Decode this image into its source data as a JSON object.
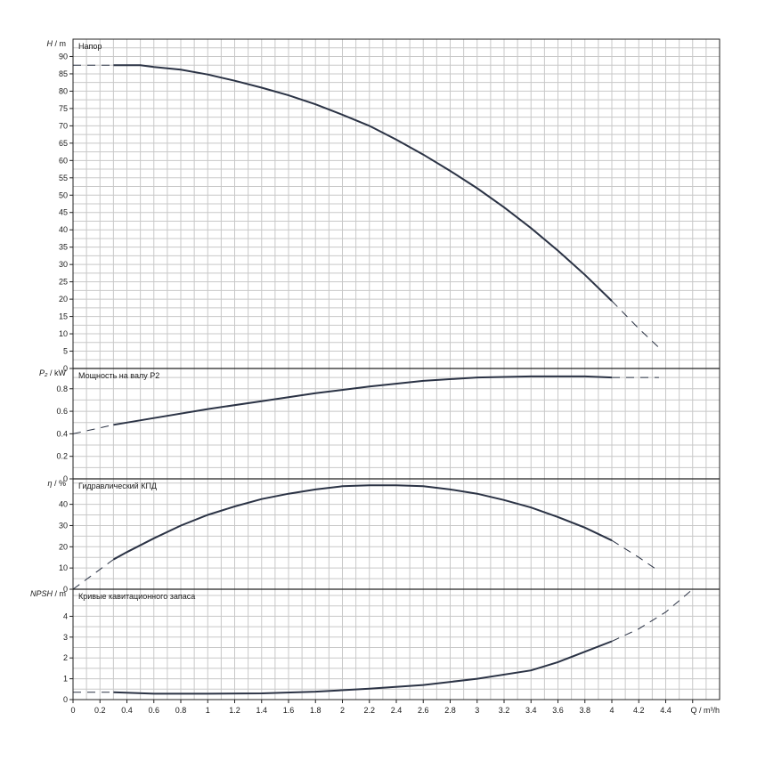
{
  "chart_data": [
    {
      "type": "line",
      "title": "Напор",
      "ylabel_italic": "H",
      "ylabel_unit": "m",
      "ylim": [
        0,
        95
      ],
      "yticks": [
        0,
        5,
        10,
        15,
        20,
        25,
        30,
        35,
        40,
        45,
        50,
        55,
        60,
        65,
        70,
        75,
        80,
        85,
        90
      ],
      "grid": true,
      "series": [
        {
          "style": "solid",
          "x": [
            0.3,
            0.4,
            0.5,
            0.6,
            0.8,
            1.0,
            1.2,
            1.4,
            1.6,
            1.8,
            2.0,
            2.2,
            2.4,
            2.6,
            2.8,
            3.0,
            3.2,
            3.4,
            3.6,
            3.8,
            4.0
          ],
          "y": [
            87.5,
            87.5,
            87.5,
            87,
            86.2,
            84.8,
            83,
            81,
            78.8,
            76.2,
            73.2,
            70,
            66,
            61.7,
            57,
            52,
            46.5,
            40.5,
            34,
            27,
            19.5
          ]
        },
        {
          "style": "dashed",
          "x": [
            0,
            0.3
          ],
          "y": [
            87.5,
            87.5
          ]
        },
        {
          "style": "dashed",
          "x": [
            4.0,
            4.1,
            4.2,
            4.35
          ],
          "y": [
            19.5,
            15.5,
            11.5,
            6
          ]
        }
      ]
    },
    {
      "type": "line",
      "title": "Мощность на валу P2",
      "ylabel_italic": "P₂",
      "ylabel_unit": "kW",
      "ylim": [
        0,
        0.98
      ],
      "yticks": [
        0,
        0.2,
        0.4,
        0.6,
        0.8
      ],
      "ytick_labels": [
        "0",
        "0.2",
        "0.4",
        "0.6",
        "0.8"
      ],
      "grid": true,
      "series": [
        {
          "style": "solid",
          "x": [
            0.3,
            0.6,
            1.0,
            1.4,
            1.8,
            2.2,
            2.6,
            3.0,
            3.4,
            3.8,
            4.0
          ],
          "y": [
            0.48,
            0.54,
            0.62,
            0.69,
            0.76,
            0.82,
            0.87,
            0.9,
            0.91,
            0.91,
            0.9
          ]
        },
        {
          "style": "dashed",
          "x": [
            0,
            0.3
          ],
          "y": [
            0.4,
            0.48
          ]
        },
        {
          "style": "dashed",
          "x": [
            4.0,
            4.35
          ],
          "y": [
            0.9,
            0.9
          ]
        }
      ]
    },
    {
      "type": "line",
      "title": "Гидравлический КПД",
      "ylabel_italic": "η",
      "ylabel_unit": "%",
      "ylim": [
        0,
        52
      ],
      "yticks": [
        0,
        10,
        20,
        30,
        40
      ],
      "grid": true,
      "series": [
        {
          "style": "solid",
          "x": [
            0.3,
            0.4,
            0.6,
            0.8,
            1.0,
            1.2,
            1.4,
            1.6,
            1.8,
            2.0,
            2.2,
            2.4,
            2.6,
            2.8,
            3.0,
            3.2,
            3.4,
            3.6,
            3.8,
            4.0
          ],
          "y": [
            14,
            17.5,
            24,
            30,
            35,
            39,
            42.5,
            45,
            47,
            48.5,
            49,
            49,
            48.5,
            47,
            45,
            42,
            38.5,
            34,
            29,
            23
          ]
        },
        {
          "style": "dashed",
          "x": [
            0,
            0.3
          ],
          "y": [
            0,
            14
          ]
        },
        {
          "style": "dashed",
          "x": [
            4.0,
            4.2,
            4.35
          ],
          "y": [
            23,
            15,
            8.5
          ]
        }
      ]
    },
    {
      "type": "line",
      "title": "Кривые кавитационного запаса",
      "ylabel_italic": "NPSH",
      "ylabel_unit": "m",
      "ylim": [
        0,
        5.3
      ],
      "yticks": [
        0,
        1,
        2,
        3,
        4
      ],
      "grid": true,
      "series": [
        {
          "style": "solid",
          "x": [
            0.3,
            0.6,
            1.0,
            1.4,
            1.8,
            2.2,
            2.6,
            3.0,
            3.4,
            3.6,
            3.8,
            4.0
          ],
          "y": [
            0.35,
            0.28,
            0.28,
            0.3,
            0.38,
            0.52,
            0.7,
            1.0,
            1.4,
            1.8,
            2.3,
            2.8
          ]
        },
        {
          "style": "dashed",
          "x": [
            0,
            0.3
          ],
          "y": [
            0.35,
            0.35
          ]
        },
        {
          "style": "dashed",
          "x": [
            4.0,
            4.2,
            4.4,
            4.6
          ],
          "y": [
            2.8,
            3.4,
            4.2,
            5.3
          ]
        }
      ]
    }
  ],
  "x_axis": {
    "xlim": [
      0,
      4.8
    ],
    "ticks": [
      0,
      0.2,
      0.4,
      0.6,
      0.8,
      1,
      1.2,
      1.4,
      1.6,
      1.8,
      2,
      2.2,
      2.4,
      2.6,
      2.8,
      3,
      3.2,
      3.4,
      3.6,
      3.8,
      4,
      4.2,
      4.4,
      4.6
    ],
    "tick_labels": [
      "0",
      "0.2",
      "0.4",
      "0.6",
      "0.8",
      "1",
      "1.2",
      "1.4",
      "1.6",
      "1.8",
      "2",
      "2.2",
      "2.4",
      "2.6",
      "2.8",
      "3",
      "3.2",
      "3.4",
      "3.6",
      "3.8",
      "4",
      "4.2",
      "4.4",
      ""
    ],
    "label": "Q / m³/h"
  }
}
